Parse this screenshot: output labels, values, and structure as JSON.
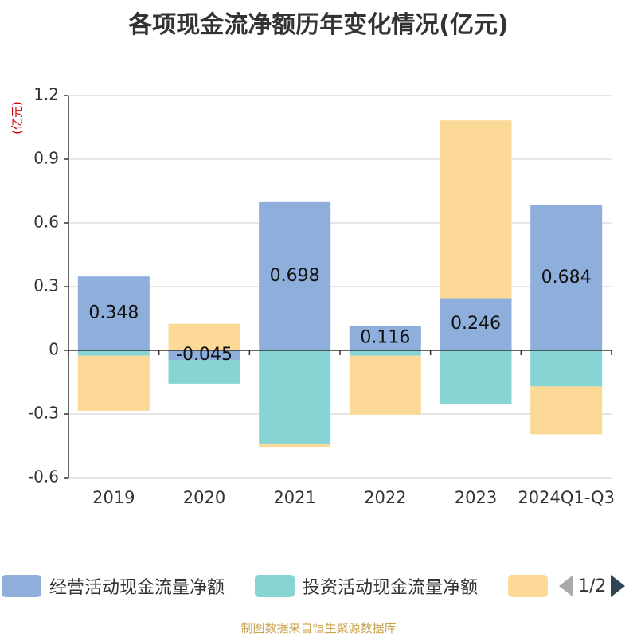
{
  "chart_data": {
    "type": "bar",
    "stacked": true,
    "title": "各项现金流净额历年变化情况(亿元)",
    "ylabel": "(亿元)",
    "ylim": [
      -0.6,
      1.2
    ],
    "yticks": [
      1.2,
      0.9,
      0.6,
      0.3,
      0,
      -0.3,
      -0.6
    ],
    "ytick_labels": [
      "1.2",
      "0.9",
      "0.6",
      "0.3",
      "0",
      "-0.3",
      "-0.6"
    ],
    "categories": [
      "2019",
      "2020",
      "2021",
      "2022",
      "2023",
      "2024Q1-Q3"
    ],
    "series": [
      {
        "name": "经营活动现金流量净额",
        "color": "#8eaedb",
        "values": [
          0.348,
          -0.045,
          0.698,
          0.116,
          0.246,
          0.684
        ]
      },
      {
        "name": "投资活动现金流量净额",
        "color": "#86d4d4",
        "values": [
          -0.025,
          -0.112,
          -0.44,
          -0.025,
          -0.255,
          -0.17
        ]
      },
      {
        "name": "",
        "color": "#fdd998",
        "values": [
          -0.26,
          0.125,
          -0.018,
          -0.278,
          0.837,
          -0.225
        ]
      }
    ],
    "data_labels": [
      "0.348",
      "-0.045",
      "0.698",
      "0.116",
      "0.246",
      "0.684"
    ]
  },
  "legend": {
    "items": [
      {
        "label": "经营活动现金流量净额",
        "color": "#8eaedb"
      },
      {
        "label": "投资活动现金流量净额",
        "color": "#86d4d4"
      },
      {
        "label": "",
        "color": "#fdd998"
      }
    ],
    "page": "1/2"
  },
  "source": "制图数据来自恒生聚源数据库",
  "colors": {
    "axis_label": "#333333",
    "unit": "#cc0000",
    "grid": "#cccccc",
    "pager_inactive": "#aaaaaa",
    "pager_active": "#2f4554"
  }
}
